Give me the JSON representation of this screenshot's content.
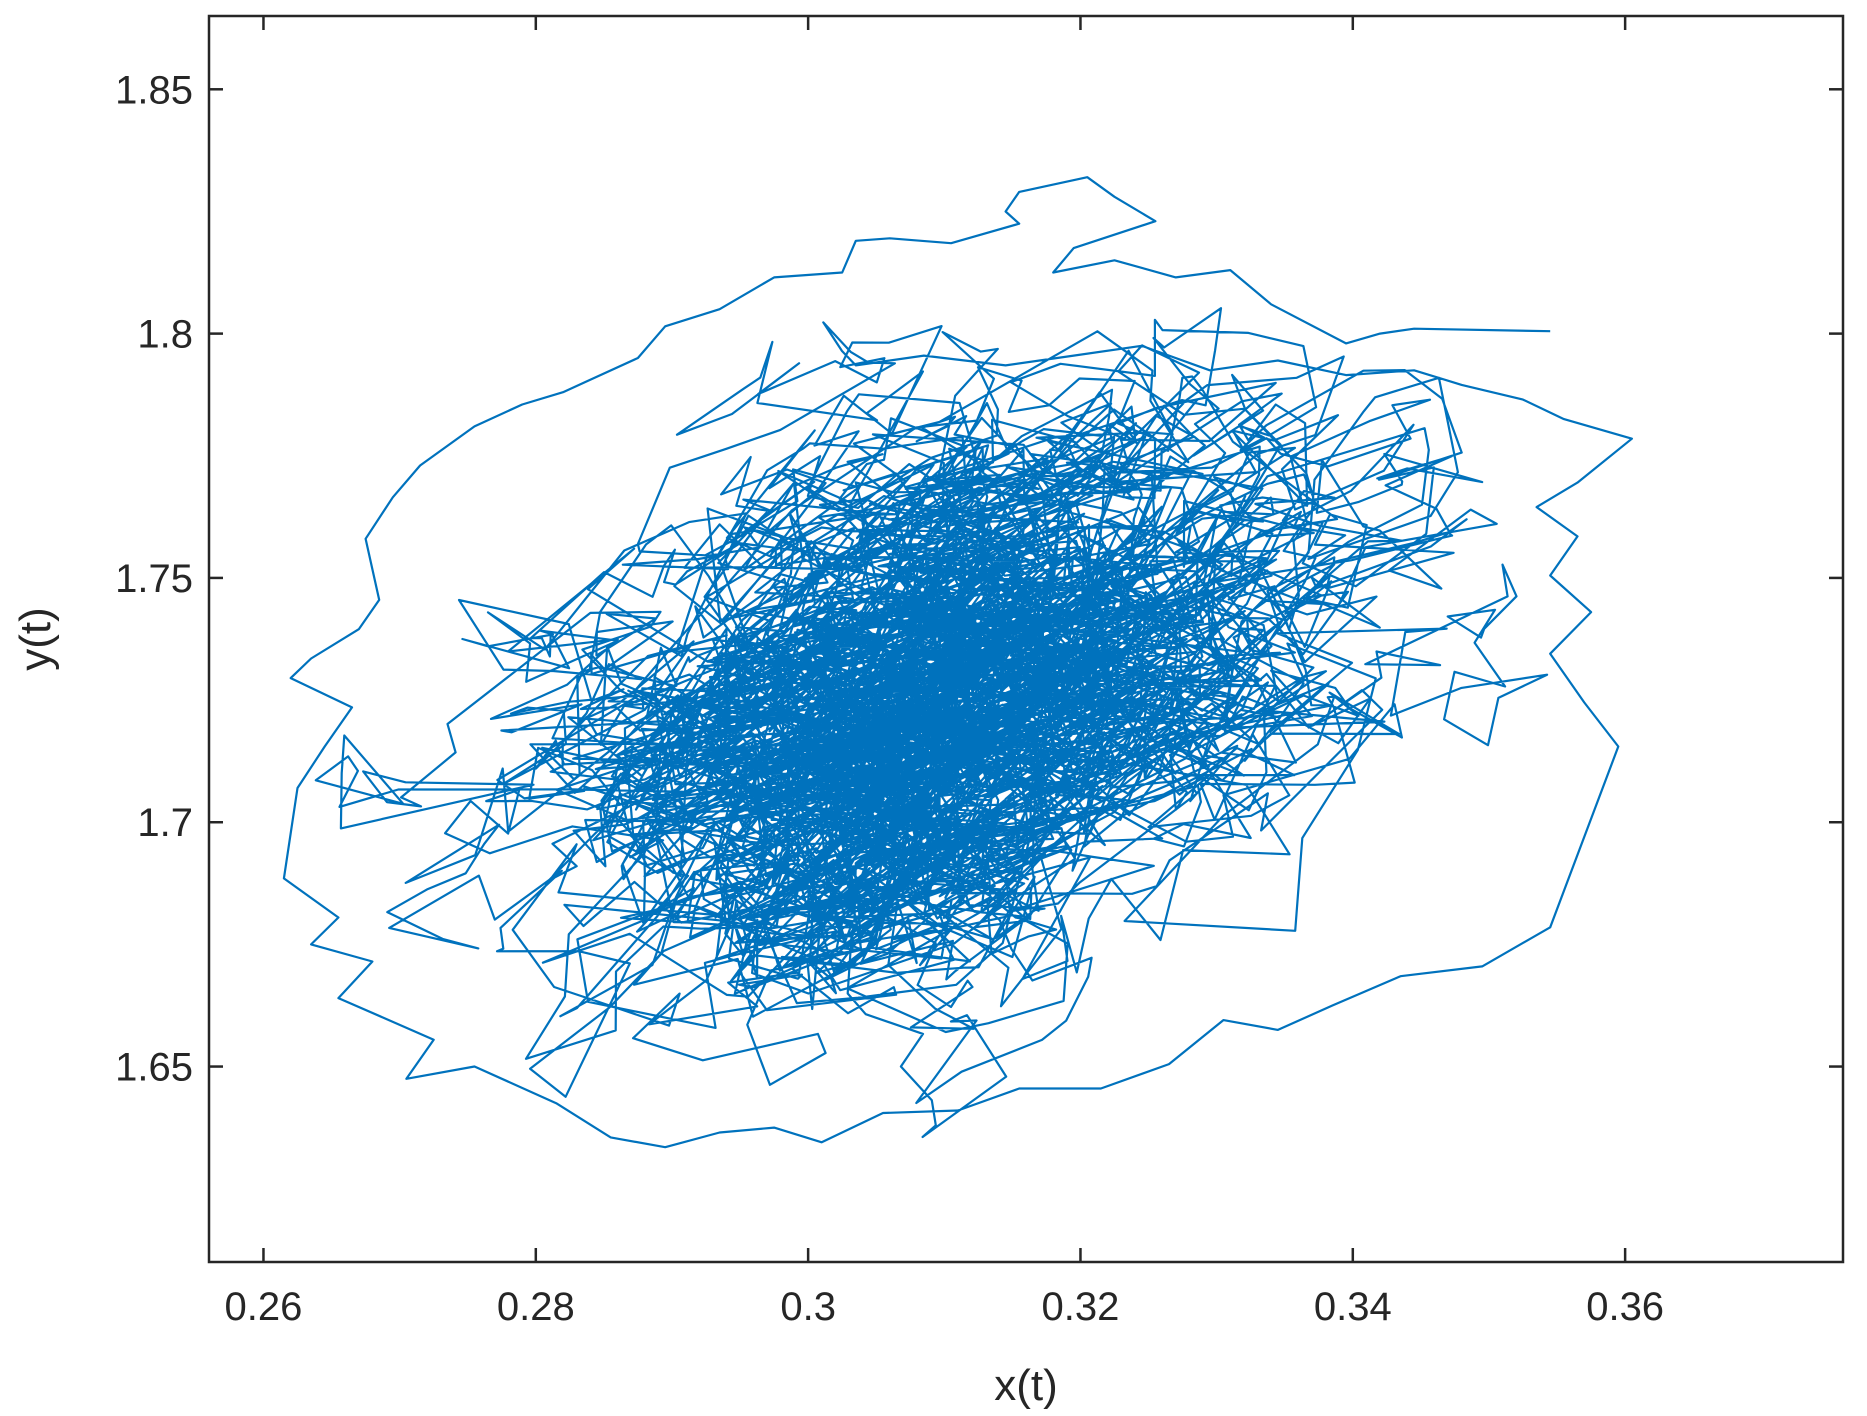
{
  "chart_data": {
    "type": "line",
    "title": "",
    "xlabel": "x(t)",
    "ylabel": "y(t)",
    "xlim": [
      0.256,
      0.376
    ],
    "ylim": [
      1.61,
      1.865
    ],
    "x_ticks": [
      0.26,
      0.28,
      0.3,
      0.32,
      0.34,
      0.36
    ],
    "x_tick_labels": [
      "0.26",
      "0.28",
      "0.3",
      "0.32",
      "0.34",
      "0.36"
    ],
    "y_ticks": [
      1.65,
      1.7,
      1.75,
      1.8,
      1.85
    ],
    "y_tick_labels": [
      "1.65",
      "1.7",
      "1.75",
      "1.8",
      "1.85"
    ],
    "grid": false,
    "line_color": "#0072BD",
    "series": [
      {
        "name": "",
        "trajectory": {
          "center": [
            0.309,
            1.722
          ],
          "approx_x_range": [
            0.261,
            0.361
          ],
          "approx_y_range": [
            1.633,
            1.832
          ],
          "outer_excursions": [
            [
              0.3545,
              1.8005
            ],
            [
              0.3445,
              1.801
            ],
            [
              0.342,
              1.8
            ],
            [
              0.3395,
              1.798
            ],
            [
              0.334,
              1.806
            ],
            [
              0.331,
              1.813
            ],
            [
              0.327,
              1.8115
            ],
            [
              0.3225,
              1.815
            ],
            [
              0.318,
              1.8125
            ],
            [
              0.3195,
              1.8175
            ],
            [
              0.3255,
              1.823
            ],
            [
              0.3225,
              1.828
            ],
            [
              0.3205,
              1.832
            ],
            [
              0.3155,
              1.829
            ],
            [
              0.3145,
              1.825
            ],
            [
              0.3155,
              1.8225
            ],
            [
              0.3105,
              1.8185
            ],
            [
              0.306,
              1.8195
            ],
            [
              0.3035,
              1.819
            ],
            [
              0.3025,
              1.8125
            ],
            [
              0.2975,
              1.8115
            ],
            [
              0.2935,
              1.805
            ],
            [
              0.2895,
              1.8015
            ],
            [
              0.2875,
              1.795
            ],
            [
              0.282,
              1.788
            ],
            [
              0.279,
              1.7855
            ],
            [
              0.2755,
              1.781
            ],
            [
              0.2715,
              1.773
            ],
            [
              0.2695,
              1.7665
            ],
            [
              0.2675,
              1.758
            ],
            [
              0.2685,
              1.7455
            ],
            [
              0.267,
              1.7395
            ],
            [
              0.2635,
              1.7335
            ],
            [
              0.262,
              1.7295
            ],
            [
              0.2665,
              1.7235
            ],
            [
              0.2645,
              1.7155
            ],
            [
              0.2625,
              1.707
            ],
            [
              0.2615,
              1.6885
            ],
            [
              0.2655,
              1.6805
            ],
            [
              0.2635,
              1.675
            ],
            [
              0.268,
              1.6715
            ],
            [
              0.2655,
              1.664
            ],
            [
              0.2725,
              1.6555
            ],
            [
              0.2705,
              1.6475
            ],
            [
              0.2755,
              1.65
            ],
            [
              0.2815,
              1.6425
            ],
            [
              0.2855,
              1.6355
            ],
            [
              0.2895,
              1.6335
            ],
            [
              0.2935,
              1.6365
            ],
            [
              0.2975,
              1.6375
            ],
            [
              0.301,
              1.6345
            ],
            [
              0.3055,
              1.6405
            ],
            [
              0.311,
              1.641
            ],
            [
              0.3155,
              1.6455
            ],
            [
              0.3215,
              1.6455
            ],
            [
              0.3265,
              1.6505
            ],
            [
              0.3305,
              1.6595
            ],
            [
              0.3345,
              1.6575
            ],
            [
              0.3385,
              1.6625
            ],
            [
              0.3435,
              1.6685
            ],
            [
              0.3495,
              1.6705
            ],
            [
              0.3545,
              1.6785
            ],
            [
              0.3595,
              1.7155
            ],
            [
              0.357,
              1.7245
            ],
            [
              0.3545,
              1.7345
            ],
            [
              0.3575,
              1.743
            ],
            [
              0.3545,
              1.7505
            ],
            [
              0.3565,
              1.7585
            ],
            [
              0.3535,
              1.7645
            ],
            [
              0.3565,
              1.7695
            ],
            [
              0.3605,
              1.7785
            ],
            [
              0.3555,
              1.7825
            ],
            [
              0.3525,
              1.7865
            ],
            [
              0.348,
              1.7895
            ],
            [
              0.3445,
              1.7925
            ],
            [
              0.3395,
              1.7915
            ],
            [
              0.3345,
              1.7945
            ],
            [
              0.3295,
              1.7925
            ],
            [
              0.3245,
              1.7975
            ],
            [
              0.3195,
              1.7955
            ],
            [
              0.3145,
              1.7935
            ],
            [
              0.3085,
              1.7955
            ],
            [
              0.3035,
              1.7935
            ]
          ]
        }
      }
    ]
  }
}
